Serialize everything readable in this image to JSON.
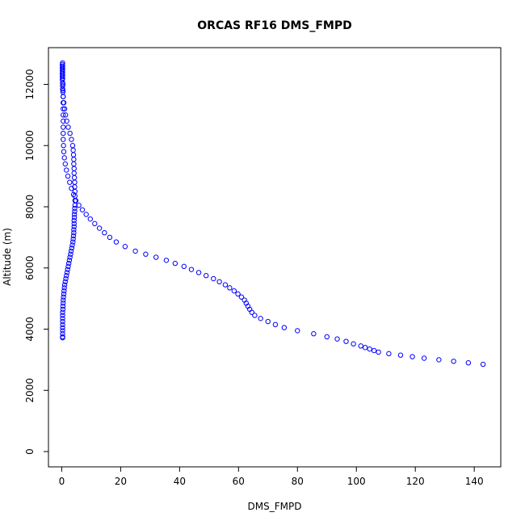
{
  "chart_data": {
    "type": "scatter",
    "title": "ORCAS RF16 DMS_FMPD",
    "xlabel": "DMS_FMPD",
    "ylabel": "Altitude (m)",
    "xlim": [
      -4.5,
      149
    ],
    "ylim": [
      -500,
      13200
    ],
    "xticks": [
      0,
      20,
      40,
      60,
      80,
      100,
      120,
      140
    ],
    "yticks": [
      0,
      2000,
      4000,
      6000,
      8000,
      10000,
      12000
    ],
    "grid": false,
    "marker": "open-circle",
    "colors": {
      "points": "#0000ff",
      "axes": "#000000",
      "background": "#ffffff"
    },
    "series": [
      {
        "x": [
          0.2,
          0.2,
          0.2,
          0.2,
          0.2,
          0.2,
          0.3,
          0.3,
          0.3,
          0.4,
          0.5,
          0.7,
          1.0,
          1.3,
          1.7,
          2.2,
          2.8,
          3.3,
          3.7,
          3.9,
          4.0,
          4.1,
          4.1,
          4.2,
          4.2,
          4.3,
          4.4,
          4.4,
          4.5,
          4.5,
          4.5,
          4.5,
          4.4,
          4.4,
          4.3,
          4.3,
          4.2,
          4.2,
          4.2,
          4.1,
          4.1,
          4.0,
          3.9,
          3.8,
          3.6,
          3.4,
          3.2,
          3.0,
          2.8,
          2.6,
          2.4,
          2.2,
          2.0,
          1.8,
          1.6,
          1.4,
          1.2,
          1.0,
          0.9,
          0.8,
          0.7,
          0.6,
          0.5,
          0.5,
          0.4,
          0.4,
          0.3,
          0.3,
          0.3,
          0.3,
          0.3,
          0.3,
          0.3,
          0.3,
          0.3,
          0.3
        ],
        "y": [
          12650,
          12550,
          12450,
          12350,
          12250,
          12150,
          12050,
          11950,
          11850,
          11750,
          11600,
          11400,
          11200,
          11000,
          10800,
          10600,
          10400,
          10200,
          10000,
          9850,
          9700,
          9550,
          9400,
          9250,
          9100,
          8950,
          8800,
          8650,
          8500,
          8350,
          8200,
          8050,
          7950,
          7850,
          7750,
          7650,
          7550,
          7450,
          7350,
          7250,
          7150,
          7050,
          6950,
          6850,
          6750,
          6650,
          6550,
          6450,
          6350,
          6250,
          6150,
          6050,
          5950,
          5850,
          5750,
          5650,
          5550,
          5450,
          5350,
          5250,
          5150,
          5050,
          4950,
          4850,
          4750,
          4650,
          4550,
          4450,
          4350,
          4250,
          4150,
          4050,
          3950,
          3850,
          3750,
          3720
        ]
      },
      {
        "x": [
          0.3,
          0.3,
          0.3,
          0.3,
          0.3,
          0.3,
          0.4,
          0.4,
          0.5,
          0.5,
          0.5,
          0.5,
          0.5,
          0.5,
          0.5,
          0.5,
          0.6,
          0.7,
          0.9,
          1.2,
          1.6,
          2.1,
          2.7,
          3.3,
          4.0,
          4.8,
          5.8,
          7.0,
          8.3,
          9.7,
          11.2,
          12.8,
          14.5,
          16.3,
          18.5,
          21.5,
          25.0,
          28.5,
          32.0,
          35.5,
          38.5,
          41.5,
          44.0,
          46.5,
          49.0,
          51.5,
          53.5,
          55.5,
          57.0,
          58.5,
          59.8,
          61.0,
          62.0,
          62.6,
          63.2,
          63.8,
          64.5,
          65.5,
          67.5,
          70.0,
          72.5,
          75.5,
          80.0,
          85.5,
          90.0,
          93.5,
          96.5,
          99.0,
          101.5,
          103.0,
          104.5,
          106.0,
          107.5,
          111.0,
          115.0,
          119.0,
          123.0,
          128.0,
          133.0,
          138.0,
          143.0
        ],
        "y": [
          12700,
          12600,
          12500,
          12400,
          12300,
          12200,
          12000,
          11800,
          11600,
          11400,
          11200,
          11000,
          10800,
          10600,
          10400,
          10200,
          10000,
          9800,
          9600,
          9400,
          9200,
          9000,
          8800,
          8600,
          8400,
          8200,
          8050,
          7900,
          7750,
          7600,
          7450,
          7300,
          7150,
          7000,
          6850,
          6700,
          6550,
          6450,
          6350,
          6250,
          6150,
          6050,
          5950,
          5850,
          5750,
          5650,
          5550,
          5450,
          5350,
          5250,
          5150,
          5050,
          4950,
          4850,
          4750,
          4650,
          4550,
          4450,
          4350,
          4250,
          4150,
          4050,
          3950,
          3850,
          3750,
          3680,
          3600,
          3520,
          3450,
          3400,
          3350,
          3300,
          3250,
          3200,
          3150,
          3100,
          3050,
          3000,
          2950,
          2900,
          2850
        ]
      }
    ]
  }
}
